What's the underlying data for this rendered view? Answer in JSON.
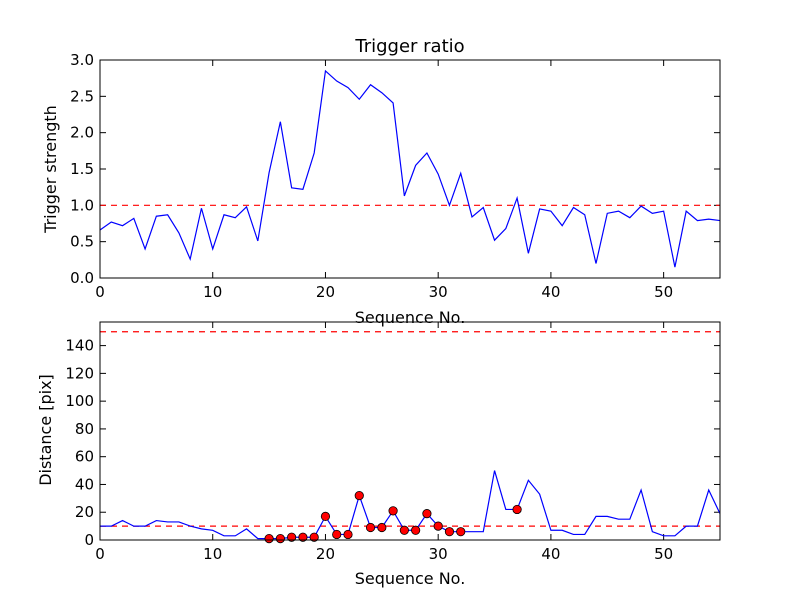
{
  "chart_data": [
    {
      "type": "line",
      "title": "Trigger ratio",
      "xlabel": "Sequence No.",
      "ylabel": "Trigger strength",
      "xlim": [
        0,
        55
      ],
      "ylim": [
        0,
        3.0
      ],
      "xticks": [
        "0",
        "10",
        "20",
        "30",
        "40",
        "50"
      ],
      "yticks": [
        "0.0",
        "0.5",
        "1.0",
        "1.5",
        "2.0",
        "2.5",
        "3.0"
      ],
      "grid": false,
      "threshold": {
        "value": 1.0,
        "color": "#ff0000",
        "style": "dashed"
      },
      "series": [
        {
          "color": "#0000ff",
          "x": [
            0,
            1,
            2,
            3,
            4,
            5,
            6,
            7,
            8,
            9,
            10,
            11,
            12,
            13,
            14,
            15,
            16,
            17,
            18,
            19,
            20,
            21,
            22,
            23,
            24,
            25,
            26,
            27,
            28,
            29,
            30,
            31,
            32,
            33,
            34,
            35,
            36,
            37,
            38,
            39,
            40,
            41,
            42,
            43,
            44,
            45,
            46,
            47,
            48,
            49,
            50,
            51,
            52,
            53,
            54,
            55
          ],
          "y": [
            0.66,
            0.77,
            0.72,
            0.82,
            0.4,
            0.85,
            0.87,
            0.62,
            0.26,
            0.96,
            0.4,
            0.87,
            0.83,
            0.98,
            0.51,
            1.45,
            2.15,
            1.24,
            1.22,
            1.72,
            2.85,
            2.71,
            2.62,
            2.46,
            2.66,
            2.55,
            2.41,
            1.13,
            1.55,
            1.72,
            1.43,
            1.0,
            1.44,
            0.84,
            0.97,
            0.52,
            0.68,
            1.1,
            0.34,
            0.95,
            0.92,
            0.72,
            0.97,
            0.87,
            0.2,
            0.89,
            0.92,
            0.83,
            0.99,
            0.89,
            0.92,
            0.15,
            0.92,
            0.79,
            0.81,
            0.79
          ]
        }
      ]
    },
    {
      "type": "line",
      "title": "",
      "xlabel": "Sequence No.",
      "ylabel": "Distance [pix]",
      "xlim": [
        0,
        55
      ],
      "ylim": [
        0,
        157
      ],
      "xticks": [
        "0",
        "10",
        "20",
        "30",
        "40",
        "50"
      ],
      "yticks": [
        "0",
        "20",
        "40",
        "60",
        "80",
        "100",
        "120",
        "140"
      ],
      "grid": false,
      "thresholds": [
        {
          "value": 10,
          "color": "#ff0000",
          "style": "dashed"
        },
        {
          "value": 150,
          "color": "#ff0000",
          "style": "dashed"
        }
      ],
      "series": [
        {
          "color": "#0000ff",
          "x": [
            0,
            1,
            2,
            3,
            4,
            5,
            6,
            7,
            8,
            9,
            10,
            11,
            12,
            13,
            14,
            15,
            16,
            17,
            18,
            19,
            20,
            21,
            22,
            23,
            24,
            25,
            26,
            27,
            28,
            29,
            30,
            31,
            32,
            33,
            34,
            35,
            36,
            37,
            38,
            39,
            40,
            41,
            42,
            43,
            44,
            45,
            46,
            47,
            48,
            49,
            50,
            51,
            52,
            53,
            54,
            55
          ],
          "y": [
            10,
            10,
            14,
            10,
            10,
            14,
            13,
            13,
            10,
            8,
            7,
            3,
            3,
            8,
            1,
            1,
            1,
            2,
            2,
            2,
            17,
            4,
            4,
            32,
            9,
            9,
            21,
            7,
            7,
            19,
            10,
            6,
            6,
            6,
            6,
            50,
            22,
            22,
            43,
            33,
            7,
            7,
            4,
            4,
            17,
            17,
            15,
            15,
            36,
            6,
            3,
            3,
            10,
            10,
            36,
            19
          ]
        }
      ],
      "markers": {
        "color": "#ff0000",
        "edge_color": "#000000",
        "shape": "circle",
        "x": [
          15,
          16,
          17,
          18,
          19,
          20,
          21,
          22,
          23,
          24,
          25,
          26,
          27,
          28,
          29,
          30,
          31,
          32,
          37
        ],
        "y": [
          1,
          1,
          2,
          2,
          2,
          17,
          4,
          4,
          32,
          9,
          9,
          21,
          7,
          7,
          19,
          10,
          6,
          6,
          22
        ]
      }
    }
  ]
}
